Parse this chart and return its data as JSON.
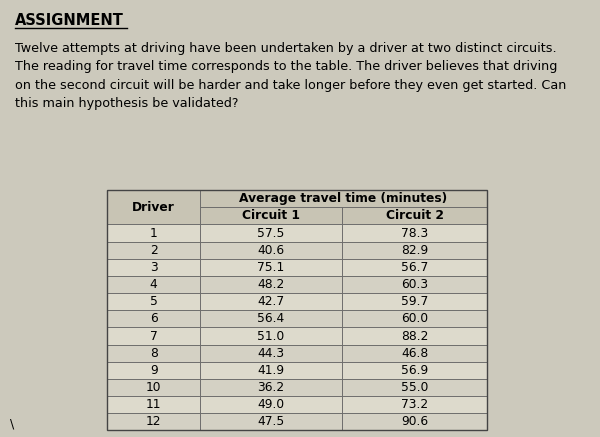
{
  "title": "ASSIGNMENT",
  "paragraph": "Twelve attempts at driving have been undertaken by a driver at two distinct circuits.\nThe reading for travel time corresponds to the table. The driver believes that driving\non the second circuit will be harder and take longer before they even get started. Can\nthis main hypothesis be validated?",
  "drivers": [
    1,
    2,
    3,
    4,
    5,
    6,
    7,
    8,
    9,
    10,
    11,
    12
  ],
  "circuit1": [
    57.5,
    40.6,
    75.1,
    48.2,
    42.7,
    56.4,
    51.0,
    44.3,
    41.9,
    36.2,
    49.0,
    47.5
  ],
  "circuit2": [
    78.3,
    82.9,
    56.7,
    60.3,
    59.7,
    60.0,
    88.2,
    46.8,
    56.9,
    55.0,
    73.2,
    90.6
  ],
  "col_header_main": "Average travel time (minutes)",
  "col_header_sub1": "Circuit 1",
  "col_header_sub2": "Circuit 2",
  "col_driver": "Driver",
  "bg_color": "#ccc9bc",
  "header_bg": "#c8c4b4",
  "row_even_bg": "#dddacc",
  "row_odd_bg": "#d4d1c4",
  "text_color": "#000000",
  "font_size_title": 10.5,
  "font_size_para": 9.2,
  "font_size_table": 8.8
}
